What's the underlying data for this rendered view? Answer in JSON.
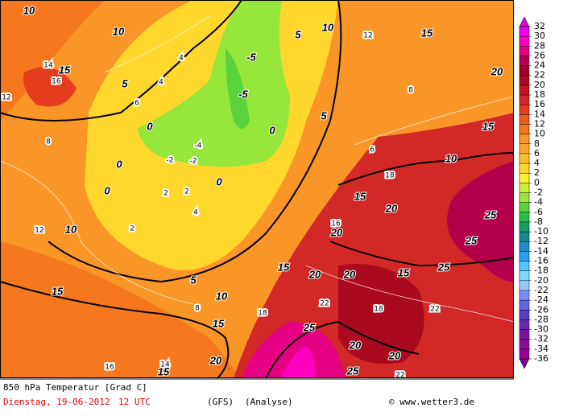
{
  "map": {
    "contour_labels": [
      "10",
      "10",
      "15",
      "5",
      "0",
      "0",
      "0",
      "0",
      "-5",
      "-5",
      "0",
      "5",
      "10",
      "15",
      "15",
      "10",
      "20",
      "15",
      "20",
      "20",
      "15",
      "20",
      "20",
      "15",
      "25",
      "25",
      "25",
      "10",
      "15",
      "5",
      "10",
      "15",
      "20",
      "15",
      "25",
      "20",
      "20",
      "25",
      "5"
    ],
    "isotherm_labels": [
      "14",
      "16",
      "12",
      "8",
      "6",
      "4",
      "2",
      "-2",
      "-4",
      "2",
      "4",
      "8",
      "12",
      "18",
      "18",
      "16",
      "22",
      "22",
      "18",
      "14",
      "16",
      "22",
      "12",
      "8",
      "2",
      "4",
      "6",
      "-2"
    ]
  },
  "legend": {
    "ticks": [
      32,
      30,
      28,
      26,
      24,
      22,
      20,
      18,
      16,
      14,
      12,
      10,
      8,
      6,
      4,
      2,
      0,
      -2,
      -4,
      -6,
      -8,
      -10,
      -12,
      -14,
      -16,
      -18,
      -20,
      -22,
      -24,
      -26,
      -28,
      -30,
      -32,
      -34,
      -36
    ],
    "colors": [
      "#f000f0",
      "#ff00c0",
      "#e60082",
      "#b4004b",
      "#a0002d",
      "#aa0a1e",
      "#c3141e",
      "#d22828",
      "#e63c1e",
      "#f05a1e",
      "#f5781e",
      "#fa9628",
      "#ffa52d",
      "#ffbe28",
      "#ffd72d",
      "#fff032",
      "#c8f03c",
      "#96e63c",
      "#5ad23c",
      "#28be46",
      "#14a064",
      "#148c8c",
      "#1e8cc8",
      "#28a0f0",
      "#50c8ff",
      "#78dcff",
      "#96c8ff",
      "#788cff",
      "#6464e6",
      "#5a3cc8",
      "#6428b4",
      "#7814a0",
      "#8c0a96",
      "#960096"
    ],
    "above_color": "#e000e0",
    "below_color": "#7800a0"
  },
  "footer": {
    "title": "850 hPa Temperatur [Grad C]",
    "date": "Dienstag, 19-06-2012",
    "time": "12 UTC",
    "model": "(GFS)",
    "run": "(Analyse)",
    "credit": "© www.wetter3.de"
  }
}
